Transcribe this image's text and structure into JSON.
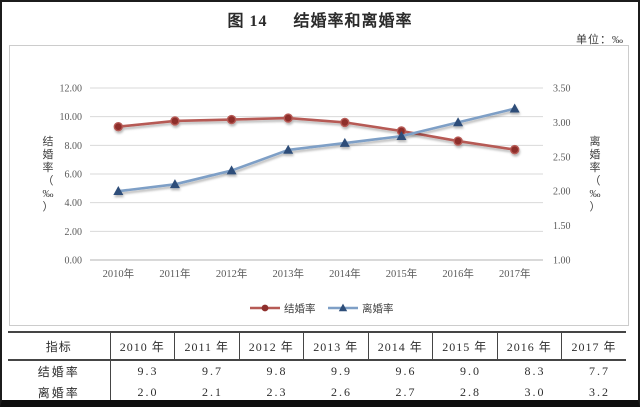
{
  "page": {
    "figure_label": "图 14",
    "title": "结婚率和离婚率",
    "unit_label": "单位：‰"
  },
  "chart_data": {
    "type": "line",
    "title": "结婚率和离婚率",
    "categories": [
      "2010年",
      "2011年",
      "2012年",
      "2013年",
      "2014年",
      "2015年",
      "2016年",
      "2017年"
    ],
    "series": [
      {
        "name": "结婚率",
        "axis": "left",
        "marker": "circle",
        "line_color": "#b65a55",
        "marker_color": "#8e2f2c",
        "values": [
          9.3,
          9.7,
          9.8,
          9.9,
          9.6,
          9.0,
          8.3,
          7.7
        ]
      },
      {
        "name": "离婚率",
        "axis": "right",
        "marker": "triangle",
        "line_color": "#7e9fc6",
        "marker_color": "#2e4e79",
        "values": [
          2.0,
          2.1,
          2.3,
          2.6,
          2.7,
          2.8,
          3.0,
          3.2
        ]
      }
    ],
    "left_axis": {
      "title": "结婚率（‰）",
      "min": 0,
      "max": 12,
      "tick_labels_top_to_bottom": [
        "12.00",
        "10.00",
        "8.00",
        "6.00",
        "4.00",
        "2.00",
        "0.00"
      ]
    },
    "right_axis": {
      "title": "离婚率（‰）",
      "min": 1.0,
      "max": 3.5,
      "tick_labels_top_to_bottom": [
        "3.50",
        "3.00",
        "2.50",
        "2.00",
        "1.50",
        "1.00"
      ]
    },
    "grid": true,
    "legend_position": "bottom",
    "grid_color": "#d9d9d9",
    "axis_line_color": "#b3b3b3",
    "tick_text_color": "#595959",
    "axis_title_color": "#404040"
  },
  "table": {
    "columns": [
      "指标",
      "2010 年",
      "2011 年",
      "2012 年",
      "2013 年",
      "2014 年",
      "2015 年",
      "2016 年",
      "2017 年"
    ],
    "rows": [
      {
        "label": "结婚率",
        "values": [
          "9.3",
          "9.7",
          "9.8",
          "9.9",
          "9.6",
          "9.0",
          "8.3",
          "7.7"
        ]
      },
      {
        "label": "离婚率",
        "values": [
          "2.0",
          "2.1",
          "2.3",
          "2.6",
          "2.7",
          "2.8",
          "3.0",
          "3.2"
        ]
      }
    ]
  }
}
